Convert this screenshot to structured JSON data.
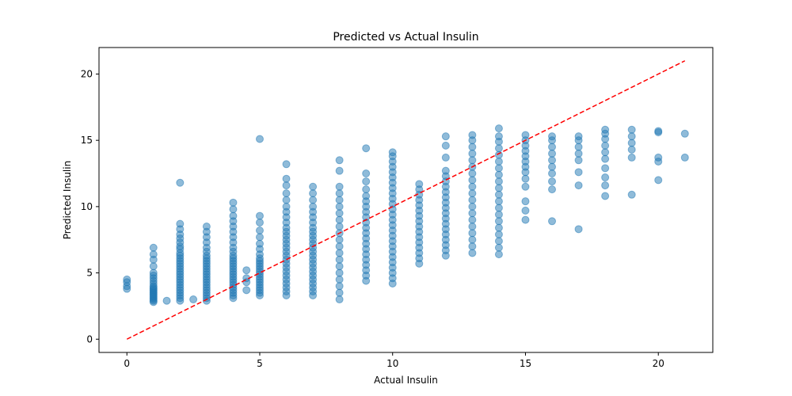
{
  "chart_data": {
    "type": "scatter",
    "title": "Predicted vs Actual Insulin",
    "xlabel": "Actual Insulin",
    "ylabel": "Predicted Insulin",
    "xlim": [
      -1.05,
      22.05
    ],
    "ylim": [
      -1.0,
      22.0
    ],
    "xticks": [
      0,
      5,
      10,
      15,
      20
    ],
    "yticks": [
      0,
      5,
      10,
      15,
      20
    ],
    "grid": false,
    "point_color": "#1f77b4",
    "point_alpha": 0.5,
    "reference_line": {
      "style": "dashed",
      "color": "#ff0000",
      "from": [
        0,
        0
      ],
      "to": [
        21,
        21
      ]
    },
    "columns": [
      {
        "x": 0,
        "ys": [
          3.8,
          4.0,
          4.3,
          4.5
        ]
      },
      {
        "x": 1,
        "ys": [
          2.8,
          2.9,
          3.0,
          3.1,
          3.2,
          3.3,
          3.4,
          3.5,
          3.6,
          3.7,
          3.8,
          3.9,
          4.0,
          4.2,
          4.4,
          4.6,
          4.8,
          5.0,
          5.5,
          6.0,
          6.4,
          6.9
        ]
      },
      {
        "x": 1.5,
        "ys": [
          2.9
        ]
      },
      {
        "x": 2,
        "ys": [
          2.9,
          3.1,
          3.3,
          3.5,
          3.7,
          3.9,
          4.1,
          4.3,
          4.5,
          4.7,
          4.9,
          5.1,
          5.3,
          5.5,
          5.7,
          5.9,
          6.1,
          6.3,
          6.5,
          6.8,
          7.0,
          7.3,
          7.6,
          7.9,
          8.3,
          8.7,
          11.8
        ]
      },
      {
        "x": 2.5,
        "ys": [
          3.0
        ]
      },
      {
        "x": 3,
        "ys": [
          2.9,
          3.1,
          3.3,
          3.5,
          3.7,
          3.9,
          4.1,
          4.3,
          4.5,
          4.7,
          4.9,
          5.1,
          5.3,
          5.5,
          5.7,
          5.9,
          6.1,
          6.3,
          6.6,
          6.9,
          7.3,
          7.7,
          8.1,
          8.5
        ]
      },
      {
        "x": 4,
        "ys": [
          3.1,
          3.3,
          3.5,
          3.7,
          3.9,
          4.1,
          4.3,
          4.5,
          4.7,
          4.9,
          5.1,
          5.3,
          5.5,
          5.7,
          5.9,
          6.1,
          6.3,
          6.6,
          6.9,
          7.3,
          7.7,
          8.1,
          8.5,
          8.9,
          9.3,
          9.8,
          10.3
        ]
      },
      {
        "x": 4.5,
        "ys": [
          3.7,
          4.3,
          4.6,
          5.2
        ]
      },
      {
        "x": 5,
        "ys": [
          3.3,
          3.5,
          3.7,
          3.9,
          4.1,
          4.3,
          4.5,
          4.7,
          4.9,
          5.1,
          5.3,
          5.5,
          5.7,
          5.9,
          6.1,
          6.4,
          6.8,
          7.2,
          7.7,
          8.2,
          8.8,
          9.3,
          15.1
        ]
      },
      {
        "x": 6,
        "ys": [
          3.3,
          3.6,
          3.9,
          4.2,
          4.5,
          4.8,
          5.1,
          5.4,
          5.7,
          6.0,
          6.3,
          6.6,
          6.9,
          7.2,
          7.5,
          7.8,
          8.1,
          8.4,
          8.8,
          9.2,
          9.6,
          10.0,
          10.5,
          11.0,
          11.6,
          12.1,
          13.2
        ]
      },
      {
        "x": 7,
        "ys": [
          3.3,
          3.6,
          3.9,
          4.2,
          4.5,
          4.8,
          5.1,
          5.4,
          5.7,
          6.0,
          6.3,
          6.6,
          6.9,
          7.2,
          7.5,
          7.8,
          8.1,
          8.4,
          8.8,
          9.2,
          9.6,
          10.0,
          10.5,
          11.0,
          11.5
        ]
      },
      {
        "x": 8,
        "ys": [
          3.0,
          3.5,
          4.0,
          4.5,
          5.0,
          5.5,
          6.0,
          6.5,
          7.0,
          7.5,
          8.0,
          8.5,
          9.0,
          9.5,
          10.0,
          10.5,
          11.0,
          11.5,
          12.7,
          13.5
        ]
      },
      {
        "x": 9,
        "ys": [
          4.4,
          4.8,
          5.2,
          5.6,
          6.0,
          6.4,
          6.8,
          7.2,
          7.6,
          8.0,
          8.4,
          8.8,
          9.2,
          9.6,
          10.0,
          10.4,
          10.8,
          11.3,
          11.9,
          12.5,
          14.4
        ]
      },
      {
        "x": 10,
        "ys": [
          4.2,
          4.6,
          5.0,
          5.4,
          5.8,
          6.2,
          6.6,
          7.0,
          7.4,
          7.8,
          8.2,
          8.6,
          9.0,
          9.4,
          9.8,
          10.2,
          10.6,
          11.0,
          11.4,
          11.8,
          12.2,
          12.6,
          13.0,
          13.4,
          13.8,
          14.1
        ]
      },
      {
        "x": 11,
        "ys": [
          5.7,
          6.1,
          6.5,
          6.9,
          7.3,
          7.7,
          8.1,
          8.5,
          8.9,
          9.3,
          9.7,
          10.1,
          10.5,
          10.9,
          11.3,
          11.7
        ]
      },
      {
        "x": 12,
        "ys": [
          6.3,
          6.7,
          7.1,
          7.5,
          7.9,
          8.3,
          8.7,
          9.1,
          9.5,
          9.9,
          10.3,
          10.7,
          11.1,
          11.5,
          11.9,
          12.3,
          12.7,
          13.7,
          14.6,
          15.3
        ]
      },
      {
        "x": 13,
        "ys": [
          6.5,
          7.0,
          7.5,
          8.0,
          8.5,
          9.0,
          9.5,
          10.0,
          10.5,
          11.0,
          11.5,
          12.0,
          12.5,
          13.0,
          13.5,
          14.0,
          14.5,
          15.0,
          15.4
        ]
      },
      {
        "x": 14,
        "ys": [
          6.4,
          6.9,
          7.4,
          7.9,
          8.4,
          8.9,
          9.4,
          9.9,
          10.4,
          10.9,
          11.4,
          11.9,
          12.4,
          12.9,
          13.4,
          13.9,
          14.4,
          14.9,
          15.3,
          15.9
        ]
      },
      {
        "x": 15,
        "ys": [
          9.0,
          9.7,
          10.4,
          11.5,
          12.1,
          12.6,
          13.0,
          13.4,
          13.8,
          14.2,
          14.6,
          15.0,
          15.4
        ]
      },
      {
        "x": 16,
        "ys": [
          8.9,
          11.3,
          11.9,
          12.5,
          13.0,
          13.5,
          14.0,
          14.5,
          15.0,
          15.3
        ]
      },
      {
        "x": 17,
        "ys": [
          8.3,
          11.6,
          12.6,
          13.5,
          14.0,
          14.5,
          15.0,
          15.3
        ]
      },
      {
        "x": 18,
        "ys": [
          10.8,
          11.6,
          12.2,
          12.9,
          13.6,
          14.1,
          14.6,
          15.1,
          15.5,
          15.8
        ]
      },
      {
        "x": 19,
        "ys": [
          10.9,
          13.7,
          14.3,
          14.8,
          15.3,
          15.8
        ]
      },
      {
        "x": 20,
        "ys": [
          12.0,
          13.4,
          13.7,
          15.6,
          15.7
        ]
      },
      {
        "x": 21,
        "ys": [
          13.7,
          15.5
        ]
      }
    ]
  }
}
